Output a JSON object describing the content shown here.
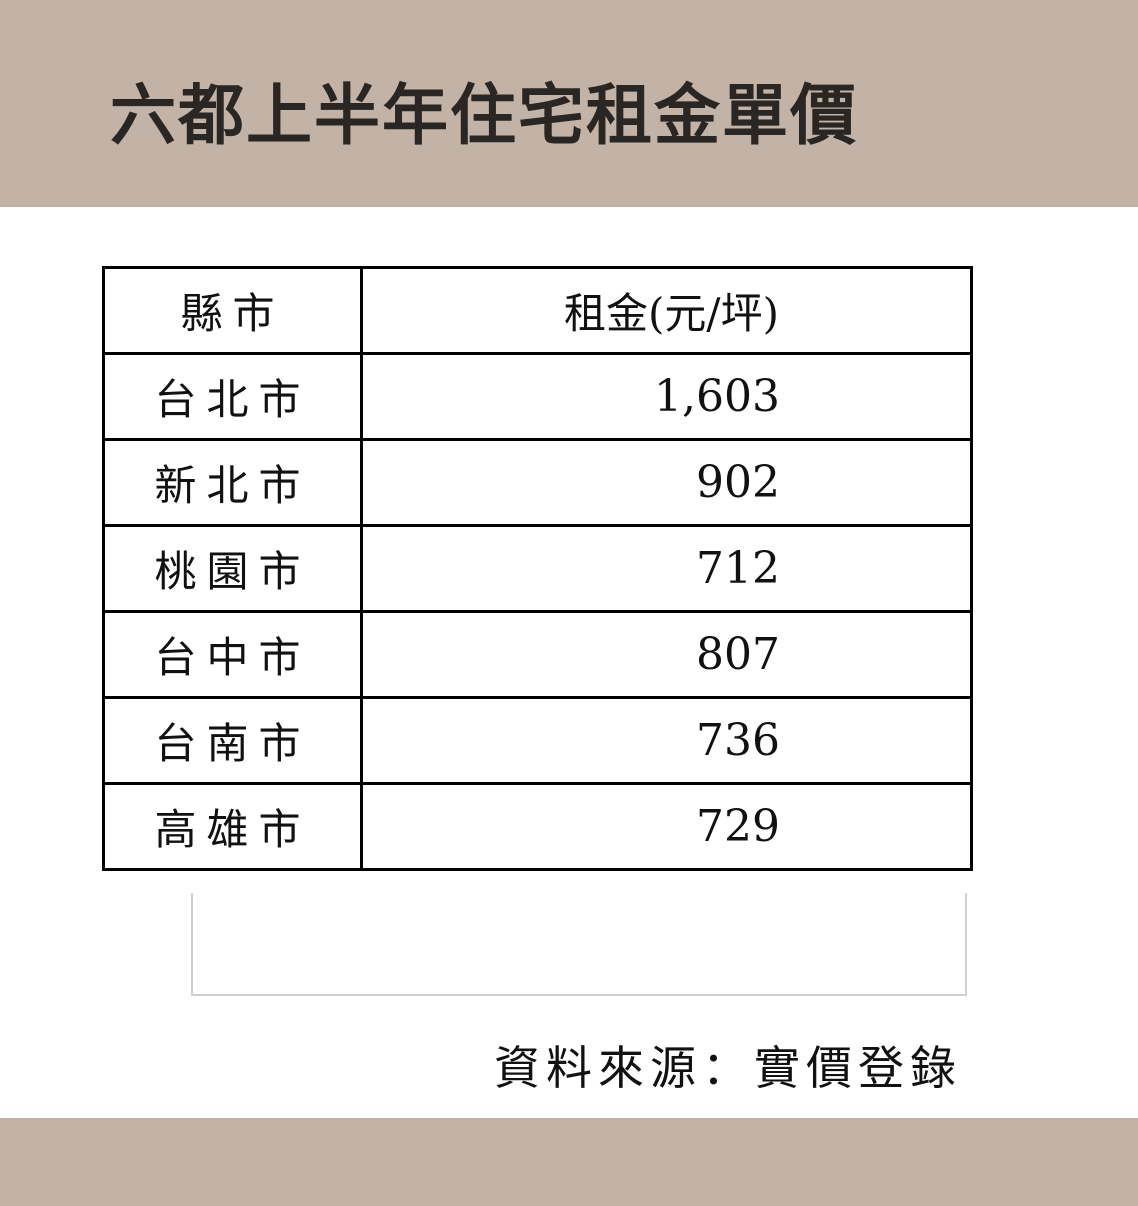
{
  "title": "六都上半年住宅租金單價",
  "source": "資料來源：實價登錄",
  "colors": {
    "band": "#c3b3a6",
    "title": "#2a2623"
  },
  "chart_data": {
    "type": "table",
    "columns": [
      "縣市",
      "租金(元/坪)"
    ],
    "rows": [
      {
        "city": "台北市",
        "rent": "1,603"
      },
      {
        "city": "新北市",
        "rent": "902"
      },
      {
        "city": "桃園市",
        "rent": "712"
      },
      {
        "city": "台中市",
        "rent": "807"
      },
      {
        "city": "台南市",
        "rent": "736"
      },
      {
        "city": "高雄市",
        "rent": "729"
      }
    ]
  }
}
